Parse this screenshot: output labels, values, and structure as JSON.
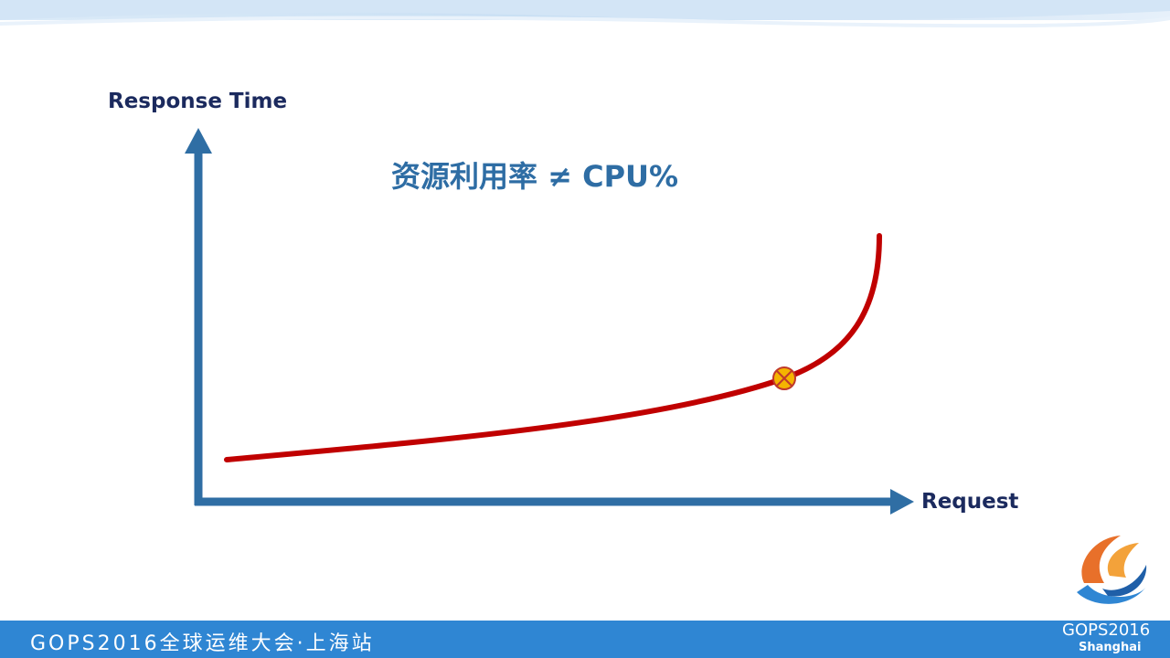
{
  "slide": {
    "headline": "资源利用率 ≠ CPU%",
    "footer_text": "GOPS2016全球运维大会·上海站",
    "logo": {
      "year_text": "GOPS2016",
      "city_text": "Shanghai"
    }
  },
  "diagram": {
    "y_axis_label": "Response Time",
    "x_axis_label": "Request",
    "curve_color": "#c00000",
    "axis_color": "#2f6ea4",
    "marker_color": "#f5b400",
    "marker_icon": "circled-x-icon"
  }
}
